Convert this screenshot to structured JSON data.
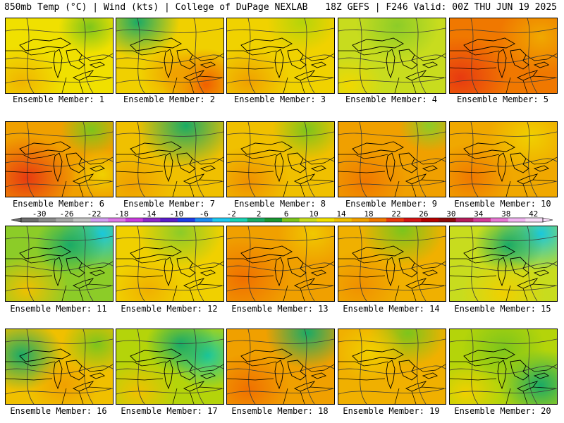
{
  "header": {
    "left": "850mb Temp (°C) | Wind (kts) | College of DuPage NEXLAB",
    "right": "18Z GEFS | F246 Valid: 00Z THU JUN 19 2025"
  },
  "panel_label_prefix": "Ensemble Member: ",
  "members": [
    {
      "label": "Ensemble Member: 1",
      "base": "#f0e000",
      "blobs": [
        [
          "#7cc51c",
          0.78,
          0.12,
          0.22
        ],
        [
          "#f0b400",
          0.15,
          0.85,
          0.3
        ]
      ]
    },
    {
      "label": "Ensemble Member: 2",
      "base": "#f0d000",
      "blobs": [
        [
          "#1aaa66",
          0.2,
          0.05,
          0.3
        ],
        [
          "#f05a00",
          0.82,
          0.88,
          0.3
        ],
        [
          "#f0a000",
          0.55,
          0.75,
          0.25
        ]
      ]
    },
    {
      "label": "Ensemble Member: 3",
      "base": "#f0d200",
      "blobs": [
        [
          "#b4d40a",
          0.7,
          0.05,
          0.25
        ],
        [
          "#f0a000",
          0.2,
          0.85,
          0.3
        ]
      ]
    },
    {
      "label": "Ensemble Member: 4",
      "base": "#c8dc1e",
      "blobs": [
        [
          "#8ccc28",
          0.55,
          0.1,
          0.3
        ],
        [
          "#f0d800",
          0.1,
          0.9,
          0.25
        ]
      ]
    },
    {
      "label": "Ensemble Member: 5",
      "base": "#f07800",
      "blobs": [
        [
          "#e83a10",
          0.1,
          0.8,
          0.35
        ],
        [
          "#f0a800",
          0.85,
          0.25,
          0.3
        ]
      ]
    },
    {
      "label": "Ensemble Member: 6",
      "base": "#f0a000",
      "blobs": [
        [
          "#e83a10",
          0.2,
          0.75,
          0.35
        ],
        [
          "#7cc51c",
          0.8,
          0.1,
          0.22
        ],
        [
          "#f0d000",
          0.9,
          0.7,
          0.22
        ]
      ]
    },
    {
      "label": "Ensemble Member: 7",
      "base": "#f0c000",
      "blobs": [
        [
          "#1aaa66",
          0.65,
          0.05,
          0.35
        ],
        [
          "#f0a000",
          0.15,
          0.85,
          0.3
        ]
      ]
    },
    {
      "label": "Ensemble Member: 8",
      "base": "#f0c000",
      "blobs": [
        [
          "#7cc51c",
          0.75,
          0.1,
          0.25
        ],
        [
          "#f09000",
          0.2,
          0.8,
          0.3
        ]
      ]
    },
    {
      "label": "Ensemble Member: 9",
      "base": "#f0a000",
      "blobs": [
        [
          "#8ccc28",
          0.85,
          0.05,
          0.22
        ],
        [
          "#f07800",
          0.25,
          0.8,
          0.3
        ]
      ]
    },
    {
      "label": "Ensemble Member: 10",
      "base": "#f0a800",
      "blobs": [
        [
          "#f0d000",
          0.75,
          0.2,
          0.3
        ],
        [
          "#f07800",
          0.2,
          0.75,
          0.3
        ]
      ]
    },
    {
      "label": "Ensemble Member: 11",
      "base": "#8ccc28",
      "blobs": [
        [
          "#1ac8dc",
          0.9,
          0.1,
          0.3
        ],
        [
          "#1aaa66",
          0.6,
          0.25,
          0.25
        ],
        [
          "#f0c000",
          0.2,
          0.85,
          0.3
        ]
      ]
    },
    {
      "label": "Ensemble Member: 12",
      "base": "#f0d000",
      "blobs": [
        [
          "#8ccc28",
          0.6,
          0.08,
          0.3
        ],
        [
          "#f0b000",
          0.3,
          0.85,
          0.25
        ]
      ]
    },
    {
      "label": "Ensemble Member: 13",
      "base": "#f0a000",
      "blobs": [
        [
          "#f07000",
          0.15,
          0.7,
          0.35
        ],
        [
          "#f0c800",
          0.8,
          0.1,
          0.25
        ]
      ]
    },
    {
      "label": "Ensemble Member: 14",
      "base": "#f0b000",
      "blobs": [
        [
          "#7cc51c",
          0.6,
          0.05,
          0.3
        ],
        [
          "#f09000",
          0.2,
          0.8,
          0.3
        ]
      ]
    },
    {
      "label": "Ensemble Member: 15",
      "base": "#c8dc1e",
      "blobs": [
        [
          "#1ac8dc",
          0.85,
          0.1,
          0.32
        ],
        [
          "#1aaa66",
          0.55,
          0.25,
          0.25
        ],
        [
          "#f0d000",
          0.5,
          0.9,
          0.3
        ]
      ]
    },
    {
      "label": "Ensemble Member: 16",
      "base": "#f0c000",
      "blobs": [
        [
          "#1aaa66",
          0.15,
          0.35,
          0.3
        ],
        [
          "#7cc51c",
          0.85,
          0.2,
          0.25
        ],
        [
          "#f0a000",
          0.55,
          0.75,
          0.25
        ]
      ]
    },
    {
      "label": "Ensemble Member: 17",
      "base": "#b4d40a",
      "blobs": [
        [
          "#1ac8a0",
          0.85,
          0.35,
          0.28
        ],
        [
          "#1aaa66",
          0.6,
          0.2,
          0.25
        ],
        [
          "#f0c000",
          0.2,
          0.85,
          0.28
        ]
      ]
    },
    {
      "label": "Ensemble Member: 18",
      "base": "#f0a000",
      "blobs": [
        [
          "#1aaa66",
          0.75,
          0.05,
          0.3
        ],
        [
          "#f07000",
          0.2,
          0.8,
          0.3
        ]
      ]
    },
    {
      "label": "Ensemble Member: 19",
      "base": "#f0b000",
      "blobs": [
        [
          "#7cc51c",
          0.65,
          0.05,
          0.28
        ],
        [
          "#f0d000",
          0.3,
          0.3,
          0.25
        ]
      ]
    },
    {
      "label": "Ensemble Member: 20",
      "base": "#b4d40a",
      "blobs": [
        [
          "#1aaa66",
          0.85,
          0.75,
          0.3
        ],
        [
          "#7cc51c",
          0.5,
          0.25,
          0.3
        ],
        [
          "#f0d000",
          0.15,
          0.85,
          0.25
        ]
      ]
    }
  ],
  "colorbar": {
    "ticks": [
      "-30",
      "-26",
      "-22",
      "-18",
      "-14",
      "-10",
      "-6",
      "-2",
      "2",
      "6",
      "10",
      "14",
      "18",
      "22",
      "26",
      "30",
      "34",
      "38",
      "42"
    ],
    "colors": [
      "#6e6e6e",
      "#8c8c8c",
      "#a8a8a8",
      "#c4c4c4",
      "#d2a0f0",
      "#dc78e6",
      "#c83cdc",
      "#8c28c8",
      "#5a1ec8",
      "#1e3ce6",
      "#1e8cf0",
      "#1ec8f0",
      "#1ad2b4",
      "#1aaa66",
      "#1a9632",
      "#7cc51c",
      "#c8dc1e",
      "#f0e000",
      "#f0c000",
      "#f0a000",
      "#f07800",
      "#e83a10",
      "#d21414",
      "#b40000",
      "#8c0a0a",
      "#b41e5a",
      "#d23c96",
      "#e678d2",
      "#f0b4f0",
      "#f8dcf8"
    ]
  }
}
